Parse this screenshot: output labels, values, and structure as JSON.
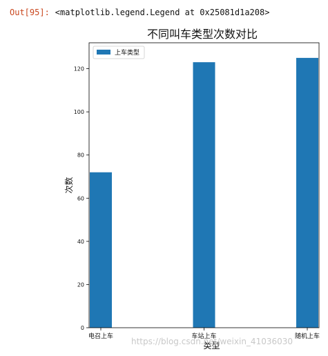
{
  "output": {
    "prompt": "Out[95]:",
    "text": "<matplotlib.legend.Legend at 0x25081d1a208>"
  },
  "chart_data": {
    "type": "bar",
    "title": "不同叫车类型次数对比",
    "xlabel": "类型",
    "ylabel": "次数",
    "categories": [
      "电召上车",
      "车站上车",
      "随机上车"
    ],
    "series": [
      {
        "name": "上车类型",
        "values": [
          72,
          123,
          125
        ],
        "color": "#1f77b4"
      }
    ],
    "ylim": [
      0,
      132
    ],
    "yticks": [
      0,
      20,
      40,
      60,
      80,
      100,
      120
    ],
    "grid": false,
    "legend": "top-left"
  },
  "watermark": "https://blog.csdn.net/weixin_41036030"
}
